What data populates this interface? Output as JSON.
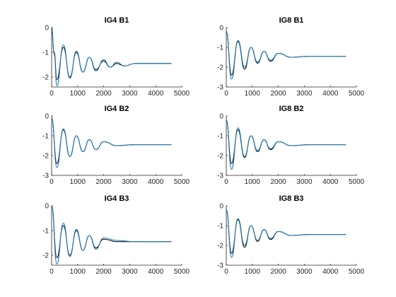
{
  "chart_data": [
    {
      "type": "line",
      "title": "IG4  B1",
      "xlim": [
        0,
        5000
      ],
      "ylim": [
        -2.4,
        0
      ],
      "xticks": [
        0,
        1000,
        2000,
        3000,
        4000,
        5000
      ],
      "yticks": [
        -2,
        -1,
        0
      ],
      "grid": false,
      "signal": {
        "x_start": 0,
        "x_end": 4600,
        "y0": 0,
        "y_final": -1.45,
        "y_min": -2.35,
        "period": 500,
        "decay": 900
      },
      "series": [
        {
          "color": "#000000",
          "points": [
            [
              0,
              0
            ],
            [
              100,
              -1.0
            ],
            [
              200,
              -2.1
            ],
            [
              450,
              -0.8
            ],
            [
              700,
              -2.0
            ],
            [
              950,
              -1.0
            ],
            [
              1200,
              -1.8
            ],
            [
              1450,
              -1.2
            ],
            [
              1700,
              -1.7
            ],
            [
              2000,
              -1.35
            ],
            [
              2250,
              -1.6
            ],
            [
              2500,
              -1.45
            ],
            [
              2800,
              -1.55
            ],
            [
              3200,
              -1.45
            ],
            [
              4600,
              -1.45
            ]
          ]
        },
        {
          "color": "#1f78b4",
          "points": [
            [
              0,
              0
            ],
            [
              100,
              -1.1
            ],
            [
              200,
              -2.35
            ],
            [
              450,
              -0.7
            ],
            [
              700,
              -2.05
            ],
            [
              950,
              -0.95
            ],
            [
              1200,
              -1.8
            ],
            [
              1450,
              -1.2
            ],
            [
              1700,
              -1.75
            ],
            [
              2000,
              -1.3
            ],
            [
              2250,
              -1.6
            ],
            [
              2500,
              -1.4
            ],
            [
              2800,
              -1.55
            ],
            [
              3200,
              -1.45
            ],
            [
              4600,
              -1.45
            ]
          ]
        }
      ]
    },
    {
      "type": "line",
      "title": "IG8  B1",
      "xlim": [
        0,
        5000
      ],
      "ylim": [
        -3,
        0
      ],
      "xticks": [
        0,
        1000,
        2000,
        3000,
        4000,
        5000
      ],
      "yticks": [
        -3,
        -2,
        -1,
        0
      ],
      "grid": false,
      "signal": {
        "x_start": 0,
        "x_end": 4600,
        "y0": -0.2,
        "y_final": -1.45,
        "y_min": -2.6,
        "period": 520,
        "decay": 850
      },
      "series": [
        {
          "color": "#000000",
          "points": [
            [
              0,
              -0.2
            ],
            [
              200,
              -2.4
            ],
            [
              450,
              -0.7
            ],
            [
              700,
              -2.1
            ],
            [
              950,
              -1.0
            ],
            [
              1200,
              -1.8
            ],
            [
              1450,
              -1.2
            ],
            [
              1700,
              -1.7
            ],
            [
              2000,
              -1.3
            ],
            [
              2500,
              -1.5
            ],
            [
              3200,
              -1.45
            ],
            [
              4600,
              -1.45
            ]
          ]
        },
        {
          "color": "#1f78b4",
          "points": [
            [
              0,
              -0.2
            ],
            [
              200,
              -2.6
            ],
            [
              450,
              -0.65
            ],
            [
              700,
              -2.0
            ],
            [
              950,
              -1.0
            ],
            [
              1200,
              -1.75
            ],
            [
              1450,
              -1.2
            ],
            [
              1700,
              -1.65
            ],
            [
              2000,
              -1.3
            ],
            [
              2500,
              -1.5
            ],
            [
              3200,
              -1.45
            ],
            [
              4600,
              -1.45
            ]
          ]
        }
      ]
    },
    {
      "type": "line",
      "title": "IG4  B2",
      "xlim": [
        0,
        5000
      ],
      "ylim": [
        -3,
        0
      ],
      "xticks": [
        0,
        1000,
        2000,
        3000,
        4000,
        5000
      ],
      "yticks": [
        -3,
        -2,
        -1,
        0
      ],
      "grid": false,
      "signal": {
        "x_start": 0,
        "x_end": 4600,
        "y0": -0.1,
        "y_final": -1.45,
        "y_min": -2.6,
        "period": 520,
        "decay": 850
      },
      "series": [
        {
          "color": "#000000",
          "points": [
            [
              0,
              -0.1
            ],
            [
              200,
              -2.4
            ],
            [
              450,
              -0.7
            ],
            [
              700,
              -2.05
            ],
            [
              950,
              -1.0
            ],
            [
              1200,
              -1.8
            ],
            [
              1450,
              -1.2
            ],
            [
              1700,
              -1.7
            ],
            [
              2000,
              -1.3
            ],
            [
              2500,
              -1.5
            ],
            [
              3200,
              -1.45
            ],
            [
              4600,
              -1.45
            ]
          ]
        },
        {
          "color": "#1f78b4",
          "points": [
            [
              0,
              -0.1
            ],
            [
              200,
              -2.6
            ],
            [
              450,
              -0.65
            ],
            [
              700,
              -2.05
            ],
            [
              950,
              -1.0
            ],
            [
              1200,
              -1.8
            ],
            [
              1450,
              -1.2
            ],
            [
              1700,
              -1.7
            ],
            [
              2000,
              -1.3
            ],
            [
              2500,
              -1.5
            ],
            [
              3200,
              -1.45
            ],
            [
              4600,
              -1.45
            ]
          ]
        }
      ]
    },
    {
      "type": "line",
      "title": "IG8  B2",
      "xlim": [
        0,
        5000
      ],
      "ylim": [
        -3,
        0
      ],
      "xticks": [
        0,
        1000,
        2000,
        3000,
        4000,
        5000
      ],
      "yticks": [
        -3,
        -2,
        -1,
        0
      ],
      "grid": false,
      "signal": {
        "x_start": 0,
        "x_end": 4600,
        "y0": -0.2,
        "y_final": -1.45,
        "y_min": -2.7,
        "period": 520,
        "decay": 850
      },
      "series": [
        {
          "color": "#000000",
          "points": [
            [
              0,
              -0.2
            ],
            [
              200,
              -2.4
            ],
            [
              450,
              -0.7
            ],
            [
              700,
              -2.1
            ],
            [
              950,
              -1.0
            ],
            [
              1200,
              -1.8
            ],
            [
              1450,
              -1.2
            ],
            [
              1700,
              -1.7
            ],
            [
              2000,
              -1.3
            ],
            [
              2500,
              -1.5
            ],
            [
              3200,
              -1.45
            ],
            [
              4600,
              -1.45
            ]
          ]
        },
        {
          "color": "#1f78b4",
          "points": [
            [
              0,
              -0.2
            ],
            [
              200,
              -2.7
            ],
            [
              450,
              -0.6
            ],
            [
              700,
              -2.05
            ],
            [
              950,
              -1.0
            ],
            [
              1200,
              -1.75
            ],
            [
              1450,
              -1.2
            ],
            [
              1700,
              -1.65
            ],
            [
              2000,
              -1.3
            ],
            [
              2500,
              -1.5
            ],
            [
              3200,
              -1.45
            ],
            [
              4600,
              -1.45
            ]
          ]
        }
      ]
    },
    {
      "type": "line",
      "title": "IG4  B3",
      "xlim": [
        0,
        5000
      ],
      "ylim": [
        -2.4,
        0
      ],
      "xticks": [
        0,
        1000,
        2000,
        3000,
        4000,
        5000
      ],
      "yticks": [
        -2,
        -1,
        0
      ],
      "grid": false,
      "signal": {
        "x_start": 0,
        "x_end": 4600,
        "y0": 0,
        "y_final": -1.45,
        "y_min": -2.35,
        "period": 500,
        "decay": 900
      },
      "series": [
        {
          "color": "#000000",
          "points": [
            [
              0,
              0
            ],
            [
              200,
              -2.1
            ],
            [
              450,
              -0.8
            ],
            [
              700,
              -2.0
            ],
            [
              950,
              -1.0
            ],
            [
              1200,
              -1.8
            ],
            [
              1450,
              -1.2
            ],
            [
              1700,
              -1.7
            ],
            [
              2000,
              -1.35
            ],
            [
              2500,
              -1.45
            ],
            [
              3200,
              -1.45
            ],
            [
              4600,
              -1.45
            ]
          ]
        },
        {
          "color": "#1f78b4",
          "points": [
            [
              0,
              0
            ],
            [
              200,
              -2.35
            ],
            [
              450,
              -0.7
            ],
            [
              700,
              -2.05
            ],
            [
              950,
              -0.95
            ],
            [
              1200,
              -1.8
            ],
            [
              1450,
              -1.2
            ],
            [
              1700,
              -1.75
            ],
            [
              2000,
              -1.3
            ],
            [
              2500,
              -1.4
            ],
            [
              3200,
              -1.45
            ],
            [
              4600,
              -1.45
            ]
          ]
        }
      ]
    },
    {
      "type": "line",
      "title": "IG8  B3",
      "xlim": [
        0,
        5000
      ],
      "ylim": [
        -3,
        0
      ],
      "xticks": [
        0,
        1000,
        2000,
        3000,
        4000,
        5000
      ],
      "yticks": [
        -3,
        -2,
        -1,
        0
      ],
      "grid": false,
      "signal": {
        "x_start": 0,
        "x_end": 4600,
        "y0": -0.2,
        "y_final": -1.45,
        "y_min": -2.6,
        "period": 520,
        "decay": 850
      },
      "series": [
        {
          "color": "#000000",
          "points": [
            [
              0,
              -0.2
            ],
            [
              200,
              -2.4
            ],
            [
              450,
              -0.7
            ],
            [
              700,
              -2.1
            ],
            [
              950,
              -1.0
            ],
            [
              1200,
              -1.8
            ],
            [
              1450,
              -1.2
            ],
            [
              1700,
              -1.7
            ],
            [
              2000,
              -1.3
            ],
            [
              2500,
              -1.5
            ],
            [
              3200,
              -1.45
            ],
            [
              4600,
              -1.45
            ]
          ]
        },
        {
          "color": "#1f78b4",
          "points": [
            [
              0,
              -0.2
            ],
            [
              200,
              -2.6
            ],
            [
              450,
              -0.65
            ],
            [
              700,
              -2.0
            ],
            [
              950,
              -1.0
            ],
            [
              1200,
              -1.75
            ],
            [
              1450,
              -1.2
            ],
            [
              1700,
              -1.65
            ],
            [
              2000,
              -1.3
            ],
            [
              2500,
              -1.5
            ],
            [
              3200,
              -1.45
            ],
            [
              4600,
              -1.45
            ]
          ]
        }
      ]
    }
  ]
}
